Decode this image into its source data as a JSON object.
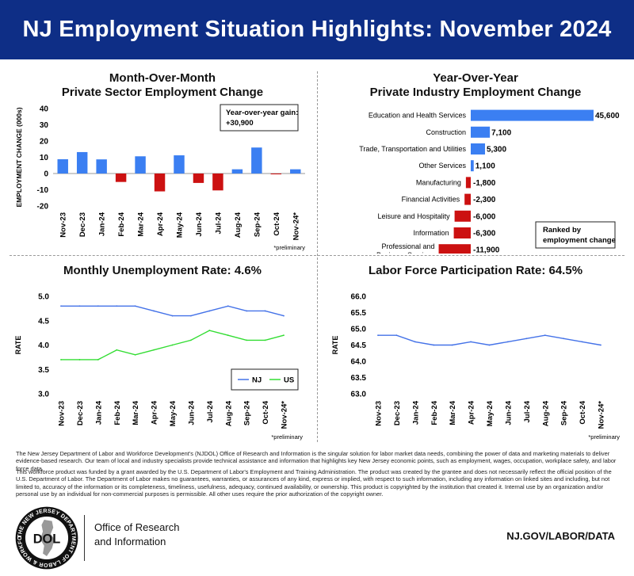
{
  "header": {
    "title": "NJ Employment Situation Highlights: November 2024"
  },
  "colors": {
    "header_bg": "#0e2e86",
    "positive": "#3b7ff2",
    "negative": "#cc1111",
    "nj_line": "#4472e8",
    "us_line": "#33dd33"
  },
  "chart_data": [
    {
      "id": "mom",
      "type": "bar",
      "title_line1": "Month-Over-Month",
      "title_line2": "Private Sector Employment Change",
      "ylabel": "EMPLOYMENT CHANGE (000s)",
      "ylim": [
        -20,
        40
      ],
      "yticks": [
        -20,
        -10,
        0,
        10,
        20,
        30,
        40
      ],
      "categories": [
        "Nov-23",
        "Dec-23",
        "Jan-24",
        "Feb-24",
        "Mar-24",
        "Apr-24",
        "May-24",
        "Jun-24",
        "Jul-24",
        "Aug-24",
        "Sep-24",
        "Oct-24",
        "Nov-24*"
      ],
      "values": [
        8.8,
        13.2,
        8.7,
        -5.2,
        10.6,
        -11.0,
        11.2,
        -5.8,
        -10.4,
        2.6,
        16.0,
        -0.5,
        2.6
      ],
      "annotation_line1": "Year-over-year gain:",
      "annotation_line2": "+30,900",
      "note": "*preliminary"
    },
    {
      "id": "yoy",
      "type": "bar",
      "orientation": "horizontal",
      "title_line1": "Year-Over-Year",
      "title_line2": "Private Industry Employment Change",
      "categories": [
        "Education and Health Services",
        "Construction",
        "Trade, Transportation and Utilities",
        "Other Services",
        "Manufacturing",
        "Financial Activities",
        "Leisure and Hospitality",
        "Information",
        "Professional and Business Services"
      ],
      "values": [
        45600,
        7100,
        5300,
        1100,
        -1800,
        -2300,
        -6000,
        -6300,
        -11900
      ],
      "value_labels": [
        "45,600",
        "7,100",
        "5,300",
        "1,100",
        "-1,800",
        "-2,300",
        "-6,000",
        "-6,300",
        "-11,900"
      ],
      "legend_line1": "Ranked by",
      "legend_line2": "employment change"
    },
    {
      "id": "unemp",
      "type": "line",
      "title": "Monthly Unemployment Rate: 4.6%",
      "ylabel": "RATE",
      "ylim": [
        3.0,
        5.0
      ],
      "yticks": [
        "3.0",
        "3.5",
        "4.0",
        "4.5",
        "5.0"
      ],
      "categories": [
        "Nov-23",
        "Dec-23",
        "Jan-24",
        "Feb-24",
        "Mar-24",
        "Apr-24",
        "May-24",
        "Jun-24",
        "Jul-24",
        "Aug-24",
        "Sep-24",
        "Oct-24",
        "Nov-24*"
      ],
      "series": [
        {
          "name": "NJ",
          "values": [
            4.8,
            4.8,
            4.8,
            4.8,
            4.8,
            4.7,
            4.6,
            4.6,
            4.7,
            4.8,
            4.7,
            4.7,
            4.6
          ]
        },
        {
          "name": "US",
          "values": [
            3.7,
            3.7,
            3.7,
            3.9,
            3.8,
            3.9,
            4.0,
            4.1,
            4.3,
            4.2,
            4.1,
            4.1,
            4.2
          ]
        }
      ],
      "legend_position": "bottom-right",
      "note": "*preliminary"
    },
    {
      "id": "lfpr",
      "type": "line",
      "title": "Labor Force Participation Rate: 64.5%",
      "ylabel": "RATE",
      "ylim": [
        63.0,
        66.0
      ],
      "yticks": [
        "63.0",
        "63.5",
        "64.0",
        "64.5",
        "65.0",
        "65.5",
        "66.0"
      ],
      "categories": [
        "Nov-23",
        "Dec-23",
        "Jan-24",
        "Feb-24",
        "Mar-24",
        "Apr-24",
        "May-24",
        "Jun-24",
        "Jul-24",
        "Aug-24",
        "Sep-24",
        "Oct-24",
        "Nov-24*"
      ],
      "values": [
        64.8,
        64.8,
        64.6,
        64.5,
        64.5,
        64.6,
        64.5,
        64.6,
        64.7,
        64.8,
        64.7,
        64.6,
        64.5
      ],
      "note": "*preliminary"
    }
  ],
  "footer": {
    "paragraph1": "The New Jersey Department of Labor and Workforce Development's (NJDOL) Office of Research and Information is the singular solution for labor market data needs, combining the power of data and marketing materials to deliver evidence-based research. Our team of local and industry specialists provide technical assistance and information that highlights key New Jersey economic points, such as employment, wages, occupation, workplace safety, and labor force data.",
    "paragraph2": "This workforce product was funded by a grant awarded by the U.S. Department of Labor's Employment and Training Administration. The product was created by the grantee and does not necessarily reflect the official position of the U.S. Department of Labor. The Department of Labor makes no guarantees, warranties, or assurances of any kind, express or implied, with respect to such information, including any information on linked sites and including, but not limited to, accuracy of the information or its completeness, timeliness, usefulness, adequacy, continued availability, or ownership. This product is copyrighted by the institution that created it. Internal use by an organization and/or personal use by an individual for non-commercial purposes is permissible. All other uses require the prior authorization of the copyright owner.",
    "logo_text": "DOL",
    "logo_ring_text": "THE NEW JERSEY DEPARTMENT OF LABOR & WORKFORCE DEVELOPMENT",
    "org_line1": "Office of Research",
    "org_line2": "and Information",
    "url": "NJ.GOV/LABOR/DATA"
  }
}
